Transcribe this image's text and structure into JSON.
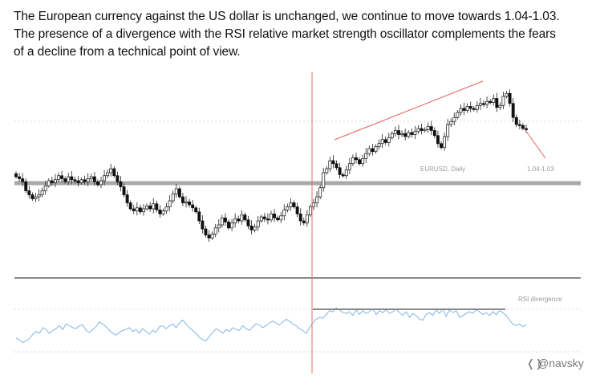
{
  "caption": {
    "line1": "The European currency against the US dollar is unchanged, we continue to move towards 1.04-1.03.",
    "line2": "The presence of a divergence with the RSI relative market strength oscillator complements the fears",
    "line3": "of a decline from a technical point of view."
  },
  "chart_data": [
    {
      "type": "candlestick",
      "instrument_label": "EURUSD, Daily",
      "target_label": "1.04-1.03",
      "y_axis": "price (no tick labels shown)",
      "series_close": [
        0.8,
        0.6,
        0.3,
        -0.6,
        -1.0,
        -1.4,
        -1.2,
        -1.0,
        -0.6,
        -0.1,
        0.4,
        0.2,
        0.5,
        0.9,
        0.6,
        0.3,
        0.8,
        0.5,
        0.4,
        0.2,
        0.5,
        0.3,
        0.6,
        0.8,
        0.3,
        0.0,
        0.4,
        0.9,
        1.2,
        1.6,
        0.9,
        0.3,
        -0.2,
        -1.0,
        -1.8,
        -2.4,
        -2.6,
        -2.3,
        -2.7,
        -2.4,
        -2.1,
        -2.4,
        -1.9,
        -2.5,
        -2.9,
        -2.6,
        -2.2,
        -1.6,
        -0.9,
        -0.4,
        -1.2,
        -1.8,
        -1.7,
        -2.0,
        -2.3,
        -2.7,
        -3.6,
        -4.4,
        -5.0,
        -5.3,
        -4.9,
        -4.3,
        -4.0,
        -3.3,
        -3.7,
        -4.3,
        -3.8,
        -3.4,
        -3.6,
        -3.0,
        -3.5,
        -4.1,
        -4.5,
        -4.2,
        -3.6,
        -3.2,
        -3.4,
        -3.5,
        -2.9,
        -3.3,
        -3.5,
        -3.1,
        -2.5,
        -2.2,
        -1.8,
        -2.2,
        -2.9,
        -3.6,
        -3.8,
        -3.0,
        -2.2,
        -1.8,
        -1.2,
        -0.3,
        1.2,
        1.6,
        2.4,
        2.1,
        1.7,
        1.0,
        0.9,
        1.5,
        2.1,
        2.7,
        2.5,
        2.1,
        2.6,
        3.1,
        3.6,
        3.3,
        3.8,
        4.1,
        4.5,
        4.2,
        4.7,
        5.1,
        5.4,
        5.0,
        5.1,
        4.8,
        5.2,
        5.0,
        5.3,
        5.6,
        5.4,
        5.5,
        5.8,
        5.4,
        4.9,
        4.1,
        3.7,
        4.8,
        6.0,
        6.3,
        6.7,
        7.2,
        7.6,
        7.4,
        7.8,
        7.6,
        7.5,
        7.9,
        8.1,
        8.0,
        8.3,
        8.2,
        8.6,
        7.7,
        7.9,
        8.8,
        9.1,
        8.1,
        6.7,
        6.0,
        5.9,
        5.6,
        5.5
      ]
    },
    {
      "type": "line",
      "panel_label": "RSI divergence",
      "values": [
        25,
        23,
        20,
        22,
        24,
        29,
        32,
        30,
        36,
        34,
        30,
        33,
        35,
        38,
        34,
        40,
        38,
        36,
        35,
        38,
        39,
        33,
        31,
        34,
        37,
        42,
        40,
        37,
        33,
        30,
        28,
        31,
        33,
        34,
        36,
        32,
        34,
        30,
        35,
        32,
        29,
        33,
        31,
        37,
        38,
        35,
        38,
        40,
        36,
        41,
        44,
        40,
        36,
        33,
        30,
        26,
        23,
        22,
        27,
        31,
        35,
        33,
        30,
        34,
        32,
        36,
        34,
        33,
        38,
        35,
        33,
        37,
        40,
        39,
        36,
        38,
        41,
        43,
        41,
        39,
        42,
        45,
        43,
        40,
        38,
        35,
        33,
        30,
        36,
        41,
        45,
        47,
        46,
        50,
        54,
        53,
        57,
        55,
        52,
        51,
        53,
        49,
        55,
        50,
        54,
        51,
        53,
        56,
        50,
        54,
        52,
        55,
        51,
        53,
        56,
        52,
        49,
        53,
        47,
        51,
        49,
        45,
        44,
        50,
        52,
        49,
        55,
        51,
        56,
        48,
        55,
        52,
        54,
        47,
        49,
        51,
        53,
        51,
        55,
        53,
        50,
        52,
        49,
        53,
        50,
        54,
        52,
        49,
        44,
        40,
        38,
        40,
        37,
        39
      ]
    },
    {
      "type": "annotations",
      "items": [
        "support-level",
        "resistance-trendline",
        "projection-line",
        "vertical-marker",
        "rsi-divergence-line"
      ]
    }
  ],
  "watermark": {
    "text": "@navsky"
  }
}
